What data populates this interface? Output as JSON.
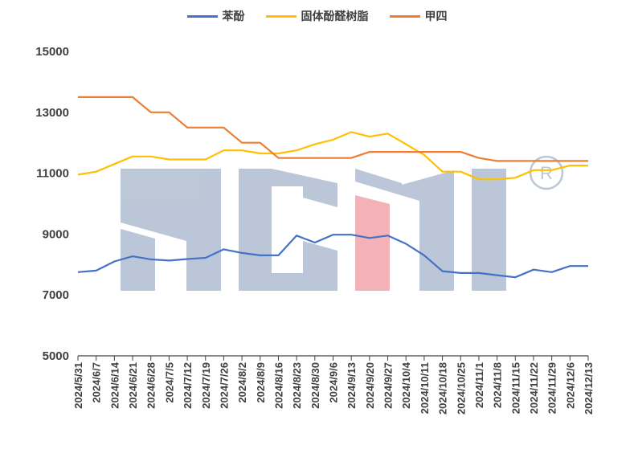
{
  "chart_data": {
    "type": "line",
    "ylim": [
      5000,
      15000
    ],
    "yticks": [
      5000,
      7000,
      9000,
      11000,
      13000,
      15000
    ],
    "grid": false,
    "legend_position": "top",
    "categories": [
      "2024/5/31",
      "2024/6/7",
      "2024/6/14",
      "2024/6/21",
      "2024/6/28",
      "2024/7/5",
      "2024/7/12",
      "2024/7/19",
      "2024/7/26",
      "2024/8/2",
      "2024/8/9",
      "2024/8/16",
      "2024/8/23",
      "2024/8/30",
      "2024/9/6",
      "2024/9/13",
      "2024/9/20",
      "2024/9/27",
      "2024/10/4",
      "2024/10/11",
      "2024/10/18",
      "2024/10/25",
      "2024/11/1",
      "2024/11/8",
      "2024/11/15",
      "2024/11/22",
      "2024/11/29",
      "2024/12/6",
      "2024/12/13"
    ],
    "series": [
      {
        "name": "苯酚",
        "color": "#4472C4",
        "values": [
          7750,
          7800,
          8100,
          8270,
          8170,
          8130,
          8180,
          8220,
          8500,
          8380,
          8300,
          8300,
          8950,
          8720,
          8980,
          8980,
          8870,
          8950,
          8680,
          8300,
          7780,
          7720,
          7720,
          7650,
          7580,
          7830,
          7750,
          7950,
          7950
        ]
      },
      {
        "name": "固体酚醛树脂",
        "color": "#FFC000",
        "values": [
          10950,
          11050,
          11300,
          11550,
          11550,
          11450,
          11450,
          11450,
          11750,
          11750,
          11650,
          11650,
          11750,
          11950,
          12100,
          12350,
          12200,
          12300,
          11950,
          11600,
          11050,
          11050,
          10800,
          10800,
          10850,
          11100,
          11100,
          11250,
          11250
        ]
      },
      {
        "name": "甲四",
        "color": "#ED7D31",
        "values": [
          13500,
          13500,
          13500,
          13500,
          13000,
          13000,
          12500,
          12500,
          12500,
          12000,
          12000,
          11500,
          11500,
          11500,
          11500,
          11500,
          11700,
          11700,
          11700,
          11700,
          11700,
          11700,
          11500,
          11400,
          11400,
          11400,
          11400,
          11400,
          11400
        ]
      }
    ]
  },
  "watermark_color": "#B8C4D6"
}
